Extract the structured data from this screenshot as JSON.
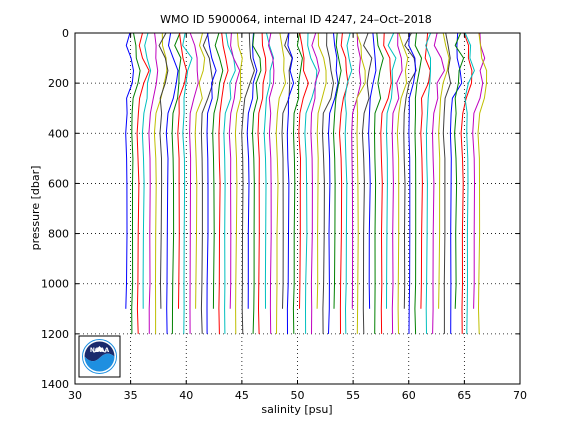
{
  "chart_data": {
    "type": "line",
    "title": "WMO ID 5900064, internal ID 4247, 24–Oct–2018",
    "xlabel": "salinity [psu]",
    "ylabel": "pressure [dbar]",
    "xlim": [
      30,
      70
    ],
    "ylim": [
      1400,
      0
    ],
    "y_reversed": true,
    "xticks": [
      30,
      35,
      40,
      45,
      50,
      55,
      60,
      65,
      70
    ],
    "yticks": [
      0,
      200,
      400,
      600,
      800,
      1000,
      1200,
      1400
    ],
    "grid": "dotted",
    "description_style": "waterfall of offset salinity profiles",
    "profile_count": 62,
    "first_profile_offset_psu": 34.6,
    "offset_step_psu": 0.52,
    "profile_shape": {
      "pressure": [
        0,
        50,
        100,
        150,
        200,
        260,
        320,
        400,
        500,
        600,
        800,
        1000,
        1100,
        1200
      ],
      "salinity_anomaly": [
        0.3,
        0.25,
        0.6,
        0.7,
        0.55,
        0.3,
        0.05,
        -0.05,
        0.05,
        0.08,
        0.05,
        0.02,
        0.0,
        0.0
      ]
    },
    "max_pressures": [
      1100,
      1200
    ],
    "colors": [
      "#0000ff",
      "#008000",
      "#ff0000",
      "#00bfbf",
      "#bf00bf",
      "#bfbf00",
      "#404040"
    ]
  },
  "logo": {
    "name": "NOAA",
    "text": "NOAA",
    "colors": {
      "top": "#1a2a6c",
      "bottom": "#1e8fe0",
      "ring": "#ffffff"
    }
  }
}
